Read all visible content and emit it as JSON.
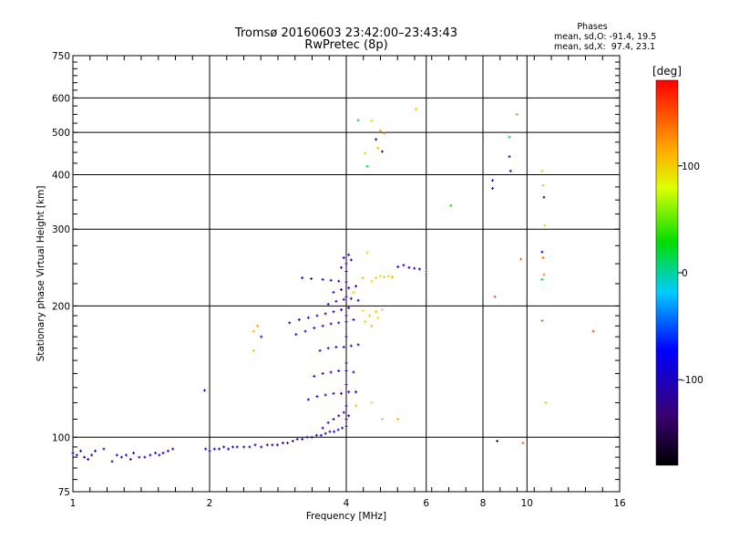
{
  "chart_data": {
    "type": "scatter",
    "title": "Tromsø 20160603 23:42:00–23:43:43",
    "subtitle": "RwPretec (8p)",
    "xlabel": "Frequency [MHz]",
    "ylabel": "Stationary phase Virtual Height [km]",
    "x_scale": "log2",
    "y_scale": "log",
    "xlim": [
      1,
      16
    ],
    "ylim": [
      75,
      750
    ],
    "x_ticks": [
      {
        "value": 1,
        "label": "1"
      },
      {
        "value": 2,
        "label": "2"
      },
      {
        "value": 4,
        "label": "4"
      },
      {
        "value": 6,
        "label": "6"
      },
      {
        "value": 8,
        "label": "8"
      },
      {
        "value": 10,
        "label": "10"
      },
      {
        "value": 16,
        "label": "16"
      }
    ],
    "y_ticks": [
      {
        "value": 75,
        "label": "75"
      },
      {
        "value": 100,
        "label": "100"
      },
      {
        "value": 200,
        "label": "200"
      },
      {
        "value": 300,
        "label": "300"
      },
      {
        "value": 400,
        "label": "400"
      },
      {
        "value": 500,
        "label": "500"
      },
      {
        "value": 600,
        "label": "600"
      },
      {
        "value": 750,
        "label": "750"
      }
    ],
    "grid": true,
    "legend": {
      "heading": "Phases",
      "lines": [
        "mean, sd,O: -91.4, 19.5",
        "mean, sd,X:  97.4, 23.1"
      ]
    },
    "colorbar": {
      "label": "[deg]",
      "range": [
        -180,
        180
      ],
      "ticks": [
        {
          "value": 100,
          "label": "100"
        },
        {
          "value": 0,
          "label": "0"
        },
        {
          "value": -100,
          "label": "-100"
        }
      ]
    },
    "points": [
      [
        1.0,
        92,
        -100
      ],
      [
        1.02,
        91,
        -110
      ],
      [
        1.04,
        93,
        -95
      ],
      [
        1.06,
        90,
        -105
      ],
      [
        1.08,
        89,
        -120
      ],
      [
        1.1,
        91,
        -100
      ],
      [
        1.12,
        93,
        -90
      ],
      [
        1.17,
        94,
        -100
      ],
      [
        1.22,
        88,
        -110
      ],
      [
        1.25,
        91,
        -95
      ],
      [
        1.28,
        90,
        -105
      ],
      [
        1.31,
        91,
        -100
      ],
      [
        1.34,
        89,
        -110
      ],
      [
        1.36,
        92,
        -95
      ],
      [
        1.4,
        90,
        -100
      ],
      [
        1.44,
        90,
        -105
      ],
      [
        1.48,
        91,
        -95
      ],
      [
        1.52,
        92,
        -100
      ],
      [
        1.55,
        91,
        -110
      ],
      [
        1.58,
        92,
        -95
      ],
      [
        1.62,
        93,
        -100
      ],
      [
        1.66,
        94,
        -105
      ],
      [
        1.95,
        128,
        -100
      ],
      [
        1.96,
        94,
        -100
      ],
      [
        2.0,
        93,
        -105
      ],
      [
        2.05,
        94,
        -95
      ],
      [
        2.1,
        94,
        -110
      ],
      [
        2.15,
        95,
        -100
      ],
      [
        2.2,
        94,
        -90
      ],
      [
        2.25,
        95,
        -105
      ],
      [
        2.3,
        95,
        -100
      ],
      [
        2.38,
        95,
        -110
      ],
      [
        2.45,
        95,
        -95
      ],
      [
        2.52,
        96,
        -100
      ],
      [
        2.6,
        95,
        -105
      ],
      [
        2.68,
        96,
        -95
      ],
      [
        2.75,
        96,
        -100
      ],
      [
        2.82,
        96,
        -110
      ],
      [
        2.9,
        97,
        -100
      ],
      [
        2.97,
        97,
        -95
      ],
      [
        3.05,
        98,
        -105
      ],
      [
        3.12,
        99,
        -100
      ],
      [
        3.2,
        99,
        -110
      ],
      [
        3.28,
        100,
        -95
      ],
      [
        3.36,
        100,
        -100
      ],
      [
        3.44,
        101,
        -105
      ],
      [
        3.52,
        101,
        -95
      ],
      [
        3.6,
        102,
        -100
      ],
      [
        3.68,
        103,
        -110
      ],
      [
        3.76,
        103,
        -95
      ],
      [
        3.84,
        104,
        -100
      ],
      [
        3.92,
        105,
        -105
      ],
      [
        4.0,
        106,
        -95
      ],
      [
        3.55,
        105,
        -100
      ],
      [
        3.65,
        108,
        -110
      ],
      [
        3.75,
        110,
        -100
      ],
      [
        3.85,
        112,
        -95
      ],
      [
        3.95,
        114,
        -105
      ],
      [
        4.05,
        112,
        -100
      ],
      [
        3.3,
        122,
        -100
      ],
      [
        3.45,
        124,
        -105
      ],
      [
        3.6,
        125,
        -95
      ],
      [
        3.75,
        126,
        -100
      ],
      [
        3.9,
        126,
        -110
      ],
      [
        4.05,
        127,
        -100
      ],
      [
        4.2,
        127,
        -95
      ],
      [
        3.4,
        138,
        -100
      ],
      [
        3.55,
        140,
        -105
      ],
      [
        3.7,
        141,
        -95
      ],
      [
        3.85,
        142,
        -100
      ],
      [
        4.0,
        142,
        -110
      ],
      [
        4.15,
        141,
        -100
      ],
      [
        3.5,
        158,
        -100
      ],
      [
        3.65,
        160,
        -105
      ],
      [
        3.8,
        161,
        -95
      ],
      [
        3.95,
        161,
        -100
      ],
      [
        4.1,
        162,
        -110
      ],
      [
        4.25,
        163,
        -100
      ],
      [
        3.1,
        172,
        -100
      ],
      [
        3.25,
        175,
        -105
      ],
      [
        3.4,
        178,
        -95
      ],
      [
        3.55,
        180,
        -100
      ],
      [
        3.7,
        182,
        -110
      ],
      [
        3.85,
        183,
        -100
      ],
      [
        4.0,
        184,
        -95
      ],
      [
        4.15,
        186,
        -100
      ],
      [
        3.0,
        183,
        -100
      ],
      [
        3.15,
        186,
        -105
      ],
      [
        3.3,
        188,
        -95
      ],
      [
        3.45,
        190,
        -100
      ],
      [
        3.6,
        192,
        -110
      ],
      [
        3.75,
        194,
        -100
      ],
      [
        3.9,
        196,
        -95
      ],
      [
        4.05,
        198,
        -100
      ],
      [
        3.65,
        202,
        -100
      ],
      [
        3.8,
        205,
        -105
      ],
      [
        3.95,
        207,
        -95
      ],
      [
        4.1,
        208,
        -100
      ],
      [
        4.25,
        206,
        -110
      ],
      [
        3.75,
        215,
        -100
      ],
      [
        3.9,
        218,
        -105
      ],
      [
        4.05,
        220,
        -95
      ],
      [
        4.2,
        222,
        -100
      ],
      [
        3.2,
        232,
        -100
      ],
      [
        3.35,
        231,
        -105
      ],
      [
        3.55,
        230,
        -95
      ],
      [
        3.7,
        229,
        -100
      ],
      [
        3.85,
        228,
        -110
      ],
      [
        4.0,
        227,
        -100
      ],
      [
        3.9,
        245,
        -100
      ],
      [
        4.0,
        250,
        -105
      ],
      [
        4.1,
        255,
        -95
      ],
      [
        3.95,
        258,
        -100
      ],
      [
        4.05,
        262,
        -110
      ],
      [
        4.0,
        110,
        -100
      ],
      [
        4.0,
        118,
        -105
      ],
      [
        4.0,
        132,
        -95
      ],
      [
        4.0,
        148,
        -100
      ],
      [
        4.0,
        170,
        -110
      ],
      [
        4.0,
        190,
        -100
      ],
      [
        4.0,
        210,
        -95
      ],
      [
        4.0,
        240,
        -100
      ],
      [
        4.15,
        215,
        100
      ],
      [
        4.35,
        232,
        110
      ],
      [
        4.55,
        228,
        90
      ],
      [
        4.65,
        232,
        100
      ],
      [
        4.75,
        234,
        95
      ],
      [
        4.85,
        233,
        105
      ],
      [
        4.95,
        234,
        100
      ],
      [
        5.05,
        233,
        110
      ],
      [
        4.35,
        195,
        90
      ],
      [
        4.5,
        190,
        100
      ],
      [
        4.65,
        194,
        110
      ],
      [
        4.8,
        196,
        95
      ],
      [
        4.4,
        184,
        100
      ],
      [
        4.55,
        180,
        110
      ],
      [
        4.7,
        188,
        95
      ],
      [
        4.2,
        118,
        110
      ],
      [
        4.55,
        120,
        90
      ],
      [
        4.8,
        110,
        100
      ],
      [
        4.45,
        265,
        100
      ],
      [
        5.2,
        246,
        -100
      ],
      [
        5.35,
        248,
        -105
      ],
      [
        5.5,
        245,
        -95
      ],
      [
        5.65,
        244,
        -100
      ],
      [
        5.8,
        243,
        -110
      ],
      [
        6.0,
        240,
        30
      ],
      [
        4.25,
        533,
        20
      ],
      [
        4.55,
        532,
        100
      ],
      [
        4.75,
        505,
        120
      ],
      [
        4.85,
        498,
        125
      ],
      [
        4.65,
        482,
        -100
      ],
      [
        4.7,
        460,
        110
      ],
      [
        4.8,
        452,
        -120
      ],
      [
        4.4,
        448,
        100
      ],
      [
        4.45,
        418,
        30
      ],
      [
        5.7,
        565,
        110
      ],
      [
        6.8,
        340,
        30
      ],
      [
        8.4,
        388,
        -110
      ],
      [
        8.4,
        372,
        -100
      ],
      [
        9.15,
        488,
        20
      ],
      [
        9.15,
        440,
        -110
      ],
      [
        9.2,
        408,
        -100
      ],
      [
        9.5,
        550,
        130
      ],
      [
        9.7,
        256,
        140
      ],
      [
        8.5,
        210,
        150
      ],
      [
        10.8,
        408,
        100
      ],
      [
        10.85,
        378,
        110
      ],
      [
        10.9,
        355,
        -120
      ],
      [
        10.95,
        306,
        100
      ],
      [
        10.8,
        266,
        -100
      ],
      [
        10.85,
        258,
        140
      ],
      [
        10.9,
        236,
        130
      ],
      [
        10.8,
        230,
        20
      ],
      [
        10.8,
        185,
        30
      ],
      [
        11.0,
        120,
        110
      ],
      [
        9.8,
        97,
        140
      ],
      [
        8.6,
        98,
        -110
      ],
      [
        14.0,
        175,
        150
      ],
      [
        2.5,
        175,
        110
      ],
      [
        2.5,
        158,
        110
      ],
      [
        2.6,
        170,
        -100
      ],
      [
        2.55,
        180,
        120
      ],
      [
        5.2,
        110,
        110
      ]
    ]
  }
}
